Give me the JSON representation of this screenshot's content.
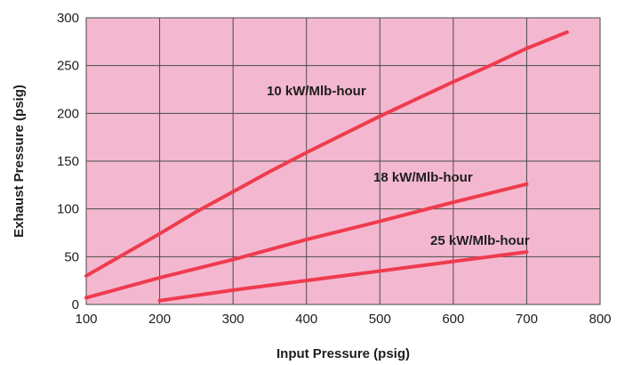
{
  "chart_data": {
    "type": "line",
    "title": "",
    "xlabel": "Input Pressure (psig)",
    "ylabel": "Exhaust Pressure (psig)",
    "xlim": [
      100,
      800
    ],
    "ylim": [
      0,
      300
    ],
    "x_ticks": [
      100,
      200,
      300,
      400,
      500,
      600,
      700,
      800
    ],
    "y_ticks": [
      0,
      50,
      100,
      150,
      200,
      250,
      300
    ],
    "grid": true,
    "legend": "none",
    "colors": {
      "plot_background": "#f3b8cf",
      "grid": "#4a4a4a",
      "series_line": "#ef3b4e",
      "text": "#1e1e1e"
    },
    "series": [
      {
        "name": "10 kW/Mlb-hour",
        "x": [
          100,
          150,
          200,
          250,
          300,
          350,
          400,
          450,
          500,
          550,
          600,
          650,
          700,
          755
        ],
        "y": [
          30,
          52,
          74,
          97,
          118,
          139,
          159,
          178,
          197,
          215,
          233,
          250,
          268,
          285
        ]
      },
      {
        "name": "18 kW/Mlb-hour",
        "x": [
          100,
          200,
          300,
          400,
          500,
          600,
          700
        ],
        "y": [
          7,
          28,
          47,
          68,
          87,
          107,
          126
        ]
      },
      {
        "name": "25 kW/Mlb-hour",
        "x": [
          200,
          300,
          400,
          500,
          600,
          700
        ],
        "y": [
          4,
          15,
          25,
          35,
          45,
          55
        ]
      }
    ]
  }
}
